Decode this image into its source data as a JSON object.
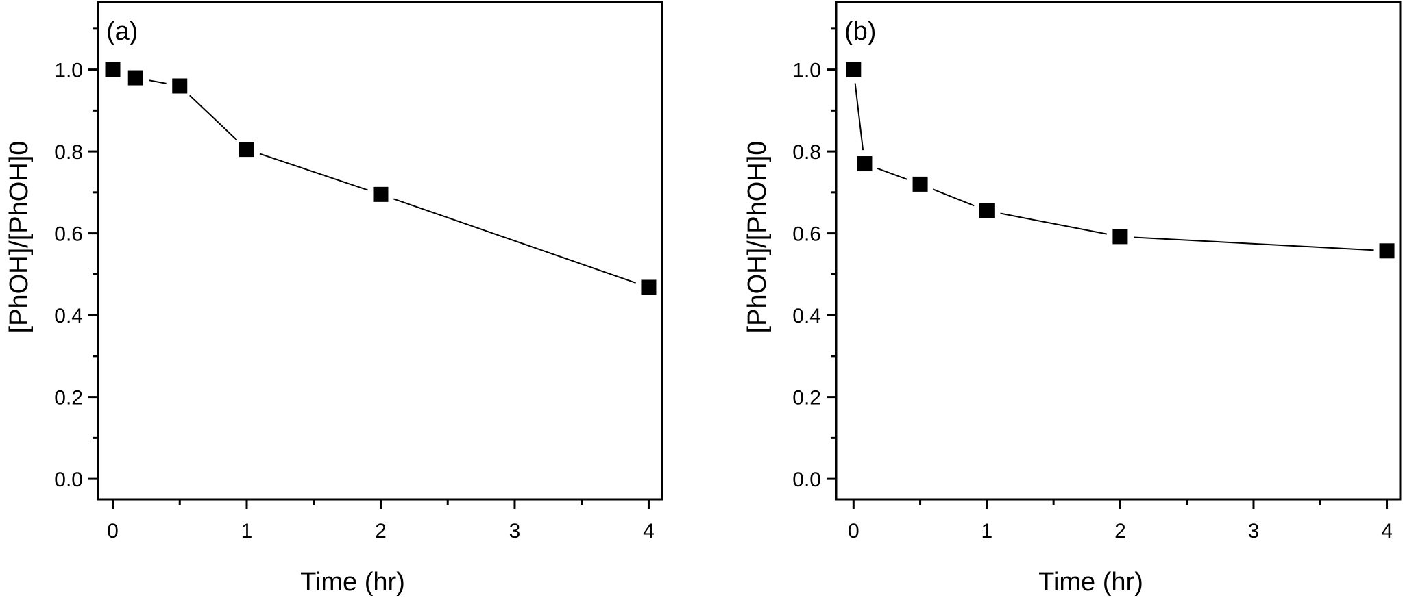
{
  "chart_data": [
    {
      "type": "line",
      "panel_label": "(a)",
      "xlabel": "Time (hr)",
      "ylabel": "[PhOH]/[PhOH]0",
      "xlim": [
        -0.11,
        4.1
      ],
      "ylim": [
        -0.05,
        1.165
      ],
      "xticks": [
        0,
        1,
        2,
        3,
        4
      ],
      "xtick_labels": [
        "0",
        "1",
        "2",
        "3",
        "4"
      ],
      "xminor": [
        0.5,
        1.5,
        2.5,
        3.5
      ],
      "yticks": [
        0.0,
        0.2,
        0.4,
        0.6,
        0.8,
        1.0
      ],
      "ytick_labels": [
        "0.0",
        "0.2",
        "0.4",
        "0.6",
        "0.8",
        "1.0"
      ],
      "yminor": [
        0.1,
        0.3,
        0.5,
        0.7,
        0.9,
        1.1
      ],
      "grid": false,
      "marker": "square",
      "color": "#000000",
      "series": [
        {
          "name": "PhOH",
          "x": [
            0,
            0.17,
            0.5,
            1,
            2,
            4
          ],
          "y": [
            1.0,
            0.98,
            0.96,
            0.805,
            0.695,
            0.468
          ]
        }
      ]
    },
    {
      "type": "line",
      "panel_label": "(b)",
      "xlabel": "Time (hr)",
      "ylabel": "[PhOH]/[PhOH]0",
      "xlim": [
        -0.13,
        4.1
      ],
      "ylim": [
        -0.05,
        1.165
      ],
      "xticks": [
        0,
        1,
        2,
        3,
        4
      ],
      "xtick_labels": [
        "0",
        "1",
        "2",
        "3",
        "4"
      ],
      "xminor": [
        0.5,
        1.5,
        2.5,
        3.5
      ],
      "yticks": [
        0.0,
        0.2,
        0.4,
        0.6,
        0.8,
        1.0
      ],
      "ytick_labels": [
        "0.0",
        "0.2",
        "0.4",
        "0.6",
        "0.8",
        "1.0"
      ],
      "yminor": [
        0.1,
        0.3,
        0.5,
        0.7,
        0.9,
        1.1
      ],
      "grid": false,
      "marker": "square",
      "color": "#000000",
      "series": [
        {
          "name": "PhOH",
          "x": [
            0,
            0.083,
            0.5,
            1,
            2,
            4
          ],
          "y": [
            1.0,
            0.77,
            0.72,
            0.655,
            0.592,
            0.557
          ]
        }
      ]
    }
  ]
}
